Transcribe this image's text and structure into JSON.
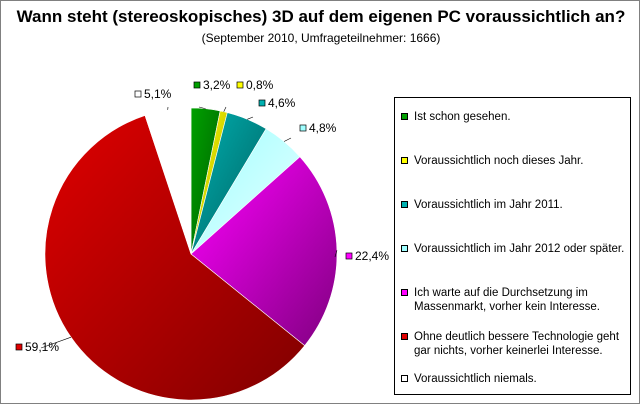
{
  "chart_data": {
    "type": "pie",
    "title": "Wann steht (stereoskopisches) 3D auf dem eigenen PC voraussichtlich an?",
    "subtitle": "(September 2010, Umfrageteilnehmer: 1666)",
    "legend_position": "right",
    "slices": [
      {
        "label": "Ist schon gesehen.",
        "value": 3.2,
        "value_label": "3,2%",
        "color": "#00a000",
        "dark": "#006000"
      },
      {
        "label": "Voraussichtlich noch dieses Jahr.",
        "value": 0.8,
        "value_label": "0,8%",
        "color": "#ffff00",
        "dark": "#b0b000"
      },
      {
        "label": "Voraussichtlich im Jahr 2011.",
        "value": 4.6,
        "value_label": "4,6%",
        "color": "#00b0b0",
        "dark": "#006060"
      },
      {
        "label": "Voraussichtlich im Jahr 2012 oder später.",
        "value": 4.8,
        "value_label": "4,8%",
        "color": "#a0ffff",
        "dark": "#e8ffff"
      },
      {
        "label": "Ich warte auf die Durchsetzung im Massenmarkt, vorher kein Interesse.",
        "value": 22.4,
        "value_label": "22,4%",
        "color": "#ff00ff",
        "dark": "#800080"
      },
      {
        "label": "Ohne deutlich bessere Technologie geht gar nichts, vorher keinerlei Interesse.",
        "value": 59.1,
        "value_label": "59,1%",
        "color": "#e00000",
        "dark": "#800000"
      },
      {
        "label": "Voraussichtlich niemals.",
        "value": 5.1,
        "value_label": "5,1%",
        "color": "#ffffff",
        "dark": "#ffffff"
      }
    ]
  }
}
